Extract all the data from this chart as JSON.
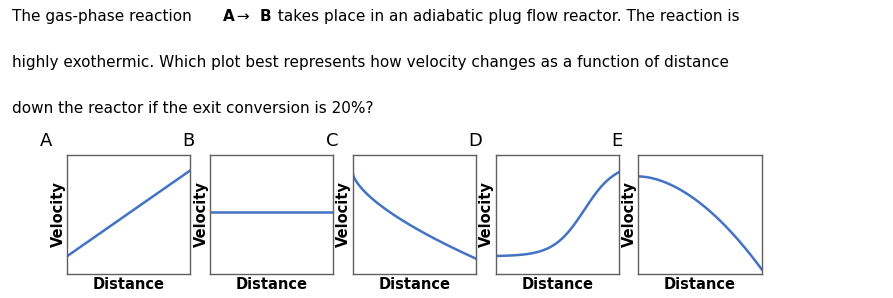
{
  "plot_labels": [
    "A",
    "B",
    "C",
    "D",
    "E"
  ],
  "xlabel": "Distance",
  "ylabel": "Velocity",
  "line_color": "#4472C4",
  "line_width": 1.8,
  "bg_color": "#ffffff",
  "box_color": "#606060",
  "text_color": "#000000",
  "title_fontsize": 11.0,
  "label_fontsize": 13,
  "axis_label_fontsize": 10.5
}
